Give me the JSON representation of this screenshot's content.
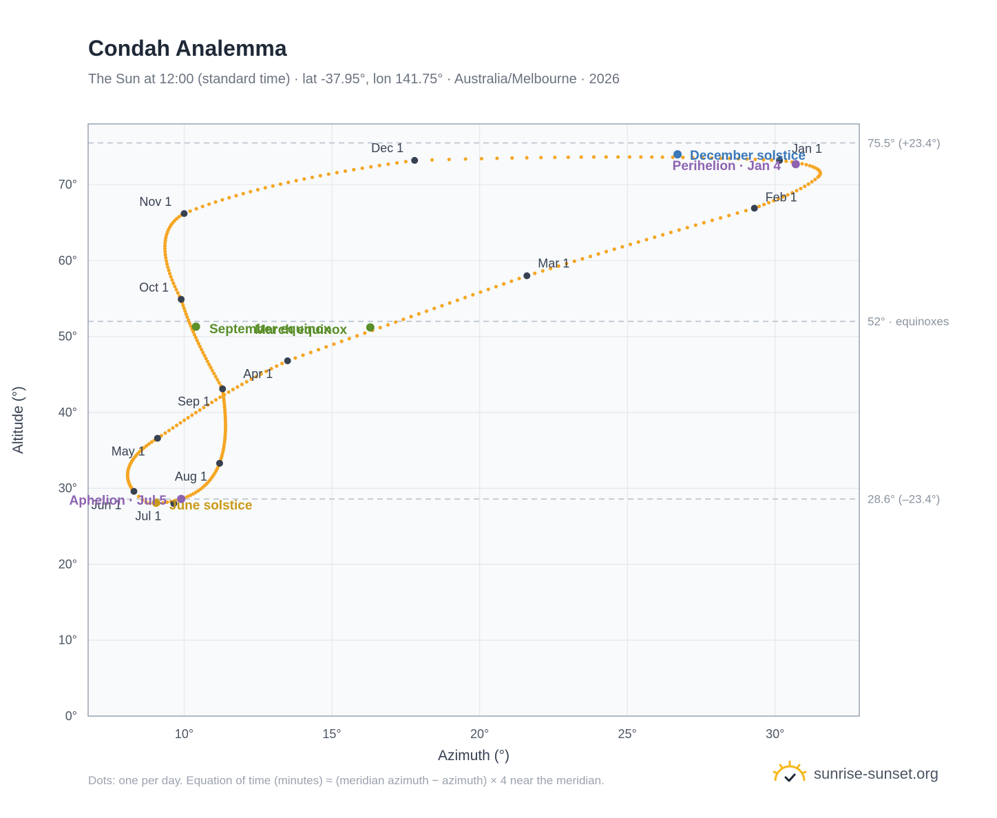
{
  "title": "Condah Analemma",
  "subtitle": "The Sun at 12:00 (standard time) · lat -37.95°, lon 141.75° · Australia/Melbourne · 2026",
  "footnote": "Dots: one per day. Equation of time (minutes) ≈ (meridian azimuth − azimuth) × 4 near the meridian.",
  "brand": {
    "name": "sunrise-sunset.org",
    "icon": "sun-logo-icon"
  },
  "colors": {
    "curve": "#f5a623",
    "month_dot": "#374151",
    "equinox": "#5a8f29",
    "june_solstice": "#c99a17",
    "december_solstice": "#3a78b8",
    "apsis": "#8e63b0",
    "reference_line": "#b9c2cc",
    "grid": "#e5e8ec",
    "plot_bg": "#f8fafc",
    "axis": "#9aa3b0"
  },
  "chart_data": {
    "type": "scatter",
    "title": "Condah Analemma",
    "xlabel": "Azimuth (°)",
    "ylabel": "Altitude (°)",
    "xlim": [
      6.75,
      32.85
    ],
    "ylim": [
      0,
      78
    ],
    "x_ticks": [
      10,
      15,
      20,
      25,
      30
    ],
    "x_tick_labels": [
      "10°",
      "15°",
      "20°",
      "25°",
      "30°"
    ],
    "y_ticks": [
      0,
      10,
      20,
      30,
      40,
      50,
      60,
      70
    ],
    "y_tick_labels": [
      "0°",
      "10°",
      "20°",
      "30°",
      "40°",
      "50°",
      "60°",
      "70°"
    ],
    "grid": true,
    "series": [
      {
        "kind": "daily_path",
        "points_per_segment": [
          31,
          28,
          31,
          30,
          31,
          30,
          31,
          31,
          30,
          31,
          30,
          31
        ],
        "path": [
          [
            30.15,
            73.2
          ],
          [
            31.45,
            71.0
          ],
          [
            29.3,
            66.9
          ],
          [
            21.6,
            58.0
          ],
          [
            13.5,
            46.8
          ],
          [
            9.1,
            36.6
          ],
          [
            8.3,
            29.6
          ],
          [
            9.0,
            28.0
          ],
          [
            11.2,
            33.3
          ],
          [
            11.3,
            43.1
          ],
          [
            9.9,
            54.9
          ],
          [
            10.0,
            66.2
          ],
          [
            17.8,
            73.2
          ],
          [
            30.15,
            73.2
          ]
        ],
        "path_curvature": [
          [
            30.15,
            73.2,
            31.4,
            72.7,
            31.7,
            71.8,
            31.45,
            71.0
          ],
          [
            31.45,
            71.0,
            31.0,
            69.4,
            30.1,
            68.1,
            29.3,
            66.9
          ],
          [
            29.3,
            66.9,
            26.6,
            63.9,
            24.1,
            61.0,
            21.6,
            58.0
          ],
          [
            21.6,
            58.0,
            18.9,
            54.3,
            16.2,
            50.6,
            13.5,
            46.8
          ],
          [
            13.5,
            46.8,
            11.6,
            43.3,
            10.4,
            40.0,
            9.1,
            36.6
          ],
          [
            9.1,
            36.6,
            8.0,
            34.0,
            7.9,
            31.5,
            8.3,
            29.6
          ],
          [
            8.3,
            29.6,
            8.6,
            28.3,
            8.7,
            28.0,
            9.0,
            28.0
          ],
          [
            9.0,
            28.0,
            10.3,
            28.3,
            10.9,
            30.4,
            11.2,
            33.3
          ],
          [
            11.2,
            33.3,
            11.5,
            36.6,
            11.4,
            40.0,
            11.3,
            43.1
          ],
          [
            11.3,
            43.1,
            10.7,
            47.2,
            10.2,
            51.0,
            9.9,
            54.9
          ],
          [
            9.9,
            54.9,
            9.3,
            59.2,
            9.0,
            64.1,
            10.0,
            66.2
          ],
          [
            10.0,
            66.2,
            12.0,
            69.4,
            14.8,
            71.6,
            17.8,
            73.2
          ],
          [
            17.8,
            73.2,
            24.0,
            73.9,
            27.4,
            73.7,
            30.15,
            73.2
          ]
        ]
      },
      {
        "kind": "month_start",
        "points": [
          {
            "label": "Jan 1",
            "x": 30.15,
            "y": 73.2
          },
          {
            "label": "Feb 1",
            "x": 29.3,
            "y": 66.9
          },
          {
            "label": "Mar 1",
            "x": 21.6,
            "y": 58.0
          },
          {
            "label": "Apr 1",
            "x": 11.3,
            "y": 43.1
          },
          {
            "label": "May 1",
            "x": 9.1,
            "y": 36.6
          },
          {
            "label": "Jun 1",
            "x": 8.3,
            "y": 29.6
          },
          {
            "label": "Jul 1",
            "x": 9.65,
            "y": 28.0
          },
          {
            "label": "Aug 1",
            "x": 11.2,
            "y": 33.3
          },
          {
            "label": "Sep 1",
            "x": 13.5,
            "y": 46.8
          },
          {
            "label": "Oct 1",
            "x": 9.9,
            "y": 54.9
          },
          {
            "label": "Nov 1",
            "x": 10.0,
            "y": 66.2
          },
          {
            "label": "Dec 1",
            "x": 17.8,
            "y": 73.2
          }
        ]
      },
      {
        "kind": "events",
        "points": [
          {
            "label": "December solstice",
            "x": 26.7,
            "y": 74.0,
            "color": "#3a78b8"
          },
          {
            "label": "Perihelion · Jan 4",
            "x": 30.7,
            "y": 72.7,
            "color": "#8e63b0"
          },
          {
            "label": "March equinox",
            "x": 16.3,
            "y": 51.2,
            "color": "#5a8f29"
          },
          {
            "label": "September equinox",
            "x": 10.4,
            "y": 51.3,
            "color": "#5a8f29"
          },
          {
            "label": "June solstice",
            "x": 9.05,
            "y": 28.1,
            "color": "#c99a17"
          },
          {
            "label": "Aphelion · Jul 5",
            "x": 9.9,
            "y": 28.6,
            "color": "#8e63b0"
          }
        ]
      }
    ],
    "reference_lines": [
      {
        "y": 75.5,
        "label": "75.5° (+23.4°)"
      },
      {
        "y": 52,
        "label": "52° · equinoxes"
      },
      {
        "y": 28.6,
        "label": "28.6° (–23.4°)"
      }
    ]
  }
}
